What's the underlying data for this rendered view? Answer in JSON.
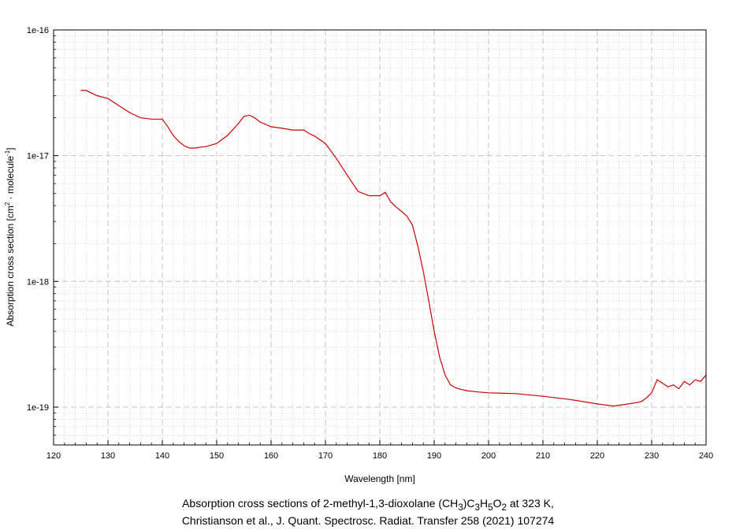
{
  "chart_data": {
    "type": "line",
    "xlabel": "Wavelength [nm]",
    "ylabel": {
      "prefix": "Absorption cross section [cm",
      "sup1": "2",
      "middle": " · molecule",
      "sup2": "-1",
      "suffix": "]"
    },
    "xlim": [
      120,
      240
    ],
    "ylim": [
      5e-20,
      1e-16
    ],
    "yscale": "log",
    "grid": true,
    "x_ticks": [
      "120",
      "130",
      "140",
      "150",
      "160",
      "170",
      "180",
      "190",
      "200",
      "210",
      "220",
      "230",
      "240"
    ],
    "y_ticks": [
      {
        "value": 1e-16,
        "label": "1e-16"
      },
      {
        "value": 1e-17,
        "label": "1e-17"
      },
      {
        "value": 1e-18,
        "label": "1e-18"
      },
      {
        "value": 1e-19,
        "label": "1e-19"
      }
    ],
    "line_color": "#cc0000",
    "series": [
      {
        "x": [
          125,
          126,
          128,
          130,
          132,
          134,
          136,
          138,
          140,
          141,
          142,
          143,
          144,
          145,
          146,
          147,
          148,
          150,
          152,
          154,
          155,
          156,
          157,
          158,
          160,
          162,
          164,
          166,
          167,
          168,
          170,
          172,
          174,
          176,
          178,
          180,
          181,
          182,
          183,
          184,
          185,
          186,
          187,
          188,
          189,
          190,
          191,
          192,
          193,
          194,
          195,
          196,
          198,
          200,
          205,
          210,
          215,
          220,
          223,
          225,
          228,
          229,
          230,
          231,
          232,
          233,
          234,
          235,
          236,
          237,
          238,
          239,
          240
        ],
        "y": [
          3.3e-17,
          3.3e-17,
          3e-17,
          2.85e-17,
          2.5e-17,
          2.2e-17,
          2e-17,
          1.95e-17,
          1.95e-17,
          1.7e-17,
          1.45e-17,
          1.3e-17,
          1.2e-17,
          1.15e-17,
          1.15e-17,
          1.17e-17,
          1.18e-17,
          1.25e-17,
          1.45e-17,
          1.8e-17,
          2.05e-17,
          2.1e-17,
          2e-17,
          1.85e-17,
          1.7e-17,
          1.65e-17,
          1.6e-17,
          1.6e-17,
          1.5e-17,
          1.43e-17,
          1.25e-17,
          9.5e-18,
          7e-18,
          5.2e-18,
          4.8e-18,
          4.8e-18,
          5.1e-18,
          4.3e-18,
          3.9e-18,
          3.6e-18,
          3.3e-18,
          2.8e-18,
          1.9e-18,
          1.2e-18,
          7e-19,
          4e-19,
          2.5e-19,
          1.8e-19,
          1.5e-19,
          1.42e-19,
          1.38e-19,
          1.35e-19,
          1.32e-19,
          1.3e-19,
          1.28e-19,
          1.22e-19,
          1.15e-19,
          1.06e-19,
          1.02e-19,
          1.05e-19,
          1.1e-19,
          1.18e-19,
          1.3e-19,
          1.65e-19,
          1.55e-19,
          1.45e-19,
          1.5e-19,
          1.4e-19,
          1.6e-19,
          1.5e-19,
          1.65e-19,
          1.6e-19,
          1.8e-19
        ]
      }
    ]
  },
  "caption": {
    "line1": {
      "pre": "Absorption cross sections of 2-methyl-1,3-dioxolane (CH",
      "s1": "3",
      "m1": ")C",
      "s2": "3",
      "m2": "H",
      "s3": "5",
      "m3": "O",
      "s4": "2",
      "post": " at 323 K,"
    },
    "line2": "Christianson et al., J. Quant. Spectrosc. Radiat. Transfer 258 (2021) 107274"
  }
}
